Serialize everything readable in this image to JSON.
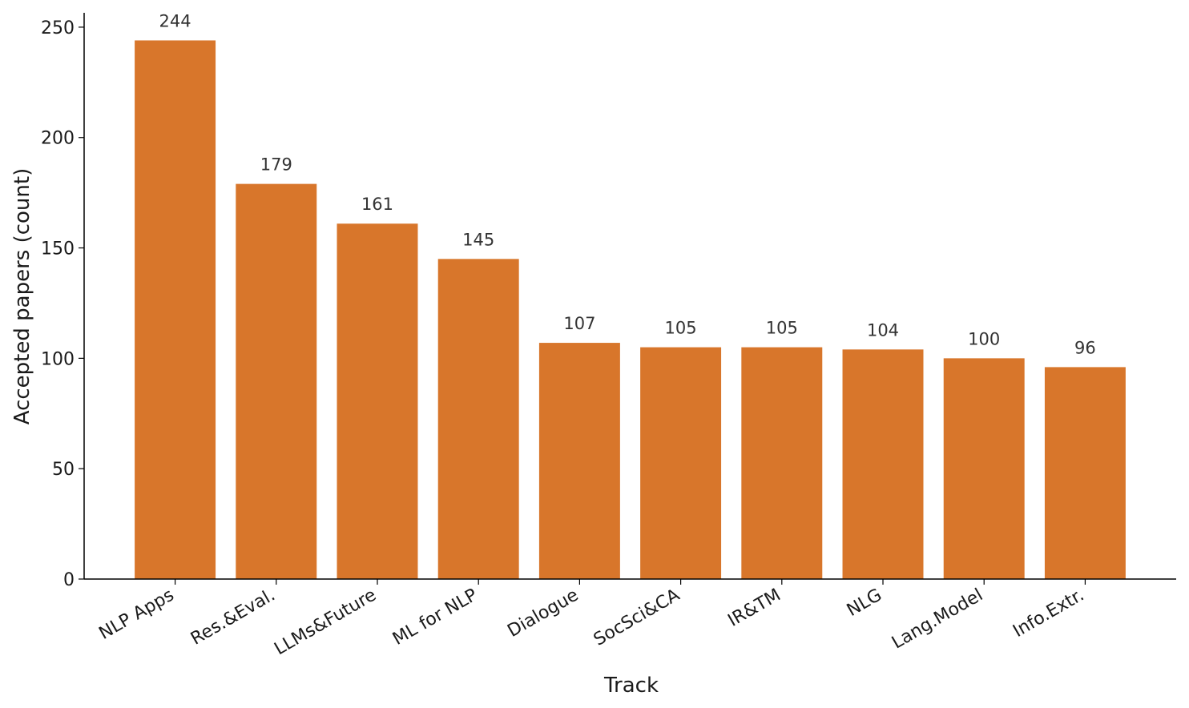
{
  "chart_data": {
    "type": "bar",
    "x_label": "Track",
    "y_label": "Accepted papers (count)",
    "categories": [
      "NLP Apps",
      "Res.&Eval.",
      "LLMs&Future",
      "ML for NLP",
      "Dialogue",
      "SocSci&CA",
      "IR&TM",
      "NLG",
      "Lang.Model",
      "Info.Extr."
    ],
    "values": [
      244,
      179,
      161,
      145,
      107,
      105,
      105,
      104,
      100,
      96
    ],
    "color": "#d8762b",
    "ylim": [
      0,
      256.5
    ],
    "yticks": [
      0,
      50,
      100,
      150,
      200,
      250
    ],
    "grid": false
  }
}
